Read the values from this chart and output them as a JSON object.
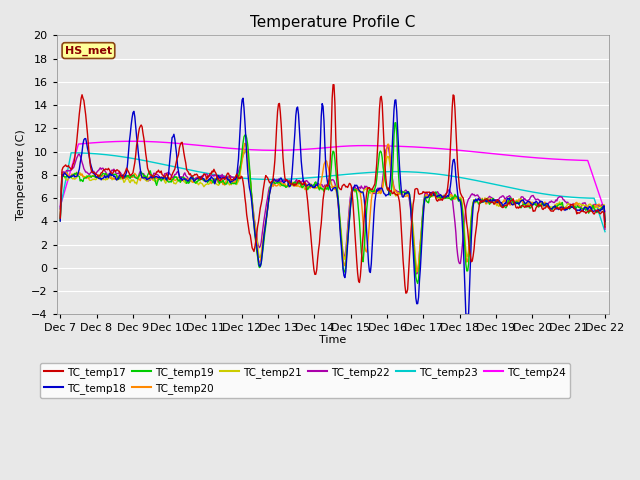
{
  "title": "Temperature Profile C",
  "xlabel": "Time",
  "ylabel": "Temperature (C)",
  "ylim": [
    -4,
    20
  ],
  "background_color": "#e8e8e8",
  "plot_bg_color": "#e8e8e8",
  "grid_color": "#ffffff",
  "annotation_text": "HS_met",
  "annotation_bg": "#ffff99",
  "annotation_border": "#8b4513",
  "x_tick_labels": [
    "Dec 7",
    "Dec 8",
    "Dec 9",
    "Dec 10",
    "Dec 11",
    "Dec 12",
    "Dec 13",
    "Dec 14",
    "Dec 15",
    "Dec 16",
    "Dec 17",
    "Dec 18",
    "Dec 19",
    "Dec 20",
    "Dec 21",
    "Dec 22"
  ],
  "series_colors": {
    "TC_temp17": "#cc0000",
    "TC_temp18": "#0000cc",
    "TC_temp19": "#00cc00",
    "TC_temp20": "#ff8800",
    "TC_temp21": "#cccc00",
    "TC_temp22": "#aa00aa",
    "TC_temp23": "#00cccc",
    "TC_temp24": "#ff00ff"
  },
  "legend_order": [
    "TC_temp17",
    "TC_temp18",
    "TC_temp19",
    "TC_temp20",
    "TC_temp21",
    "TC_temp22",
    "TC_temp23",
    "TC_temp24"
  ]
}
